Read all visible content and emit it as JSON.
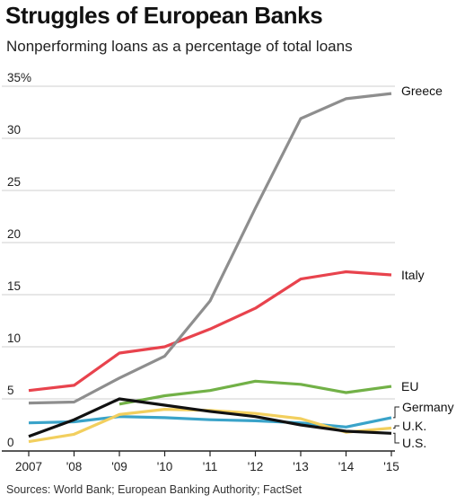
{
  "title": "Struggles of European Banks",
  "subtitle": "Nonperforming loans as a percentage of total loans",
  "source": "Sources: World Bank; European Banking Authority; FactSet",
  "colors": {
    "grid": "#cfcfcf",
    "axis": "#222222",
    "Greece": "#8e8e8e",
    "Italy": "#e8434d",
    "EU": "#72b147",
    "Germany": "#3aa3c9",
    "U.K.": "#f2cf5e",
    "U.S.": "#111111"
  },
  "chart_data": {
    "type": "line",
    "x": [
      2007,
      2008,
      2009,
      2010,
      2011,
      2012,
      2013,
      2014,
      2015
    ],
    "x_tick_labels": [
      "2007",
      "'08",
      "'09",
      "'10",
      "'11",
      "'12",
      "'13",
      "'14",
      "'15"
    ],
    "y_tick_labels": [
      "0",
      "5",
      "10",
      "15",
      "20",
      "25",
      "30",
      "35%"
    ],
    "y_ticks": [
      0,
      5,
      10,
      15,
      20,
      25,
      30,
      35
    ],
    "ylim": [
      0,
      35
    ],
    "xlim": [
      2007,
      2015
    ],
    "grid": true,
    "legend": "direct labels at right end of each line",
    "series": [
      {
        "name": "Greece",
        "values": [
          4.6,
          4.7,
          7.0,
          9.1,
          14.4,
          23.3,
          31.9,
          33.8,
          34.3
        ]
      },
      {
        "name": "Italy",
        "values": [
          5.8,
          6.3,
          9.4,
          10.0,
          11.7,
          13.7,
          16.5,
          17.2,
          16.9
        ]
      },
      {
        "name": "EU",
        "values": [
          null,
          null,
          4.5,
          5.3,
          5.8,
          6.7,
          6.4,
          5.6,
          6.2
        ]
      },
      {
        "name": "Germany",
        "values": [
          2.7,
          2.8,
          3.3,
          3.2,
          3.0,
          2.9,
          2.7,
          2.3,
          3.2
        ]
      },
      {
        "name": "U.K.",
        "values": [
          0.9,
          1.6,
          3.5,
          4.0,
          3.9,
          3.6,
          3.1,
          1.8,
          2.2
        ]
      },
      {
        "name": "U.S.",
        "values": [
          1.4,
          3.0,
          5.0,
          4.4,
          3.8,
          3.3,
          2.5,
          1.9,
          1.7
        ]
      }
    ]
  }
}
